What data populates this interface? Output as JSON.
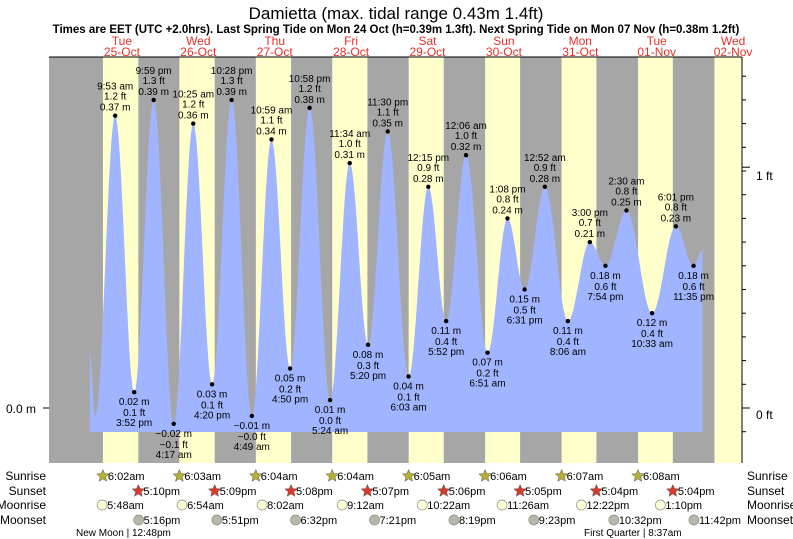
{
  "title": "Damietta (max. tidal range 0.43m 1.4ft)",
  "subtitle": "Times are EET (UTC +2.0hrs). Last Spring Tide on Mon 24 Oct (h=0.39m 1.3ft). Next Spring Tide on Mon 07 Nov (h=0.38m 1.2ft)",
  "colors": {
    "night": "#a6a6a6",
    "day": "#ffffcc",
    "water": "#a0b4ff",
    "dayLabel": "#e8302a",
    "sunrise": "#b5b033",
    "sunset": "#d9392a",
    "moonrise": "#ffffd8",
    "moonset": "#b8b8aa"
  },
  "days": [
    {
      "dow": "Tue",
      "date": "25-Oct",
      "sunrise": "6:02am",
      "sunset": "5:10pm",
      "moonrise": "5:48am",
      "moonset": "5:16pm"
    },
    {
      "dow": "Wed",
      "date": "26-Oct",
      "sunrise": "6:03am",
      "sunset": "5:09pm",
      "moonrise": "6:54am",
      "moonset": "5:51pm"
    },
    {
      "dow": "Thu",
      "date": "27-Oct",
      "sunrise": "6:04am",
      "sunset": "5:08pm",
      "moonrise": "8:02am",
      "moonset": "6:32pm"
    },
    {
      "dow": "Fri",
      "date": "28-Oct",
      "sunrise": "6:04am",
      "sunset": "5:07pm",
      "moonrise": "9:12am",
      "moonset": "7:21pm"
    },
    {
      "dow": "Sat",
      "date": "29-Oct",
      "sunrise": "6:05am",
      "sunset": "5:06pm",
      "moonrise": "10:22am",
      "moonset": "8:19pm"
    },
    {
      "dow": "Sun",
      "date": "30-Oct",
      "sunrise": "6:06am",
      "sunset": "5:05pm",
      "moonrise": "11:26am",
      "moonset": "9:23pm"
    },
    {
      "dow": "Mon",
      "date": "31-Oct",
      "sunrise": "6:07am",
      "sunset": "5:04pm",
      "moonrise": "12:22pm",
      "moonset": "10:32pm"
    },
    {
      "dow": "Tue",
      "date": "01-Nov",
      "sunrise": "6:08am",
      "sunset": "5:04pm",
      "moonrise": "1:10pm",
      "moonset": "11:42pm"
    },
    {
      "dow": "Wed",
      "date": "02-Nov"
    }
  ],
  "row_labels": {
    "sunrise": "Sunrise",
    "sunset": "Sunset",
    "moonrise": "Moonrise",
    "moonset": "Moonset"
  },
  "moon_phases": [
    {
      "text": "New Moon | 12:48pm",
      "day": 0
    },
    {
      "text": "First Quarter | 8:37am",
      "day": 7
    }
  ],
  "chart_data": {
    "type": "area",
    "title": "Damietta (max. tidal range 0.43m 1.4ft)",
    "ylabel_left": "0.0 m",
    "yticks_right": [
      "1 ft",
      "0 ft"
    ],
    "ylim_m": [
      -0.03,
      0.45
    ],
    "tides": [
      {
        "day": 0,
        "time": "9:53 am",
        "type": "high",
        "m": "0.37 m",
        "ft": "1.2 ft",
        "v": 0.37
      },
      {
        "day": 0,
        "time": "3:52 pm",
        "type": "low",
        "m": "0.02 m",
        "ft": "0.1 ft",
        "v": 0.02
      },
      {
        "day": 0,
        "time": "9:59 pm",
        "type": "high",
        "m": "0.39 m",
        "ft": "1.3 ft",
        "v": 0.39
      },
      {
        "day": 1,
        "time": "4:17 am",
        "type": "low",
        "m": "−0.02 m",
        "ft": "−0.1 ft",
        "v": -0.02
      },
      {
        "day": 1,
        "time": "10:25 am",
        "type": "high",
        "m": "0.36 m",
        "ft": "1.2 ft",
        "v": 0.36
      },
      {
        "day": 1,
        "time": "4:20 pm",
        "type": "low",
        "m": "0.03 m",
        "ft": "0.1 ft",
        "v": 0.03
      },
      {
        "day": 1,
        "time": "10:28 pm",
        "type": "high",
        "m": "0.39 m",
        "ft": "1.3 ft",
        "v": 0.39
      },
      {
        "day": 2,
        "time": "4:49 am",
        "type": "low",
        "m": "−0.01 m",
        "ft": "−0.0 ft",
        "v": -0.01
      },
      {
        "day": 2,
        "time": "10:59 am",
        "type": "high",
        "m": "0.34 m",
        "ft": "1.1 ft",
        "v": 0.34
      },
      {
        "day": 2,
        "time": "4:50 pm",
        "type": "low",
        "m": "0.05 m",
        "ft": "0.2 ft",
        "v": 0.05
      },
      {
        "day": 2,
        "time": "10:58 pm",
        "type": "high",
        "m": "0.38 m",
        "ft": "1.2 ft",
        "v": 0.38
      },
      {
        "day": 3,
        "time": "5:24 am",
        "type": "low",
        "m": "0.01 m",
        "ft": "0.0 ft",
        "v": 0.01
      },
      {
        "day": 3,
        "time": "11:34 am",
        "type": "high",
        "m": "0.31 m",
        "ft": "1.0 ft",
        "v": 0.31
      },
      {
        "day": 3,
        "time": "5:20 pm",
        "type": "low",
        "m": "0.08 m",
        "ft": "0.3 ft",
        "v": 0.08
      },
      {
        "day": 3,
        "time": "11:30 pm",
        "type": "high",
        "m": "0.35 m",
        "ft": "1.1 ft",
        "v": 0.35
      },
      {
        "day": 4,
        "time": "6:03 am",
        "type": "low",
        "m": "0.04 m",
        "ft": "0.1 ft",
        "v": 0.04
      },
      {
        "day": 4,
        "time": "12:15 pm",
        "type": "high",
        "m": "0.28 m",
        "ft": "0.9 ft",
        "v": 0.28
      },
      {
        "day": 4,
        "time": "5:52 pm",
        "type": "low",
        "m": "0.11 m",
        "ft": "0.4 ft",
        "v": 0.11
      },
      {
        "day": 5,
        "time": "12:06 am",
        "type": "high",
        "m": "0.32 m",
        "ft": "1.0 ft",
        "v": 0.32
      },
      {
        "day": 5,
        "time": "6:51 am",
        "type": "low",
        "m": "0.07 m",
        "ft": "0.2 ft",
        "v": 0.07
      },
      {
        "day": 5,
        "time": "1:08 pm",
        "type": "high",
        "m": "0.24 m",
        "ft": "0.8 ft",
        "v": 0.24
      },
      {
        "day": 5,
        "time": "6:31 pm",
        "type": "low",
        "m": "0.15 m",
        "ft": "0.5 ft",
        "v": 0.15
      },
      {
        "day": 6,
        "time": "12:52 am",
        "type": "high",
        "m": "0.28 m",
        "ft": "0.9 ft",
        "v": 0.28
      },
      {
        "day": 6,
        "time": "8:06 am",
        "type": "low",
        "m": "0.11 m",
        "ft": "0.4 ft",
        "v": 0.11
      },
      {
        "day": 6,
        "time": "3:00 pm",
        "type": "high",
        "m": "0.21 m",
        "ft": "0.7 ft",
        "v": 0.21
      },
      {
        "day": 6,
        "time": "7:54 pm",
        "type": "low",
        "m": "0.18 m",
        "ft": "0.6 ft",
        "v": 0.18
      },
      {
        "day": 7,
        "time": "2:30 am",
        "type": "high",
        "m": "0.25 m",
        "ft": "0.8 ft",
        "v": 0.25
      },
      {
        "day": 7,
        "time": "10:33 am",
        "type": "low",
        "m": "0.12 m",
        "ft": "0.4 ft",
        "v": 0.12
      },
      {
        "day": 7,
        "time": "6:01 pm",
        "type": "high",
        "m": "0.23 m",
        "ft": "0.8 ft",
        "v": 0.23
      },
      {
        "day": 7,
        "time": "11:35 pm",
        "type": "low",
        "m": "0.18 m",
        "ft": "0.6 ft",
        "v": 0.18
      }
    ]
  }
}
